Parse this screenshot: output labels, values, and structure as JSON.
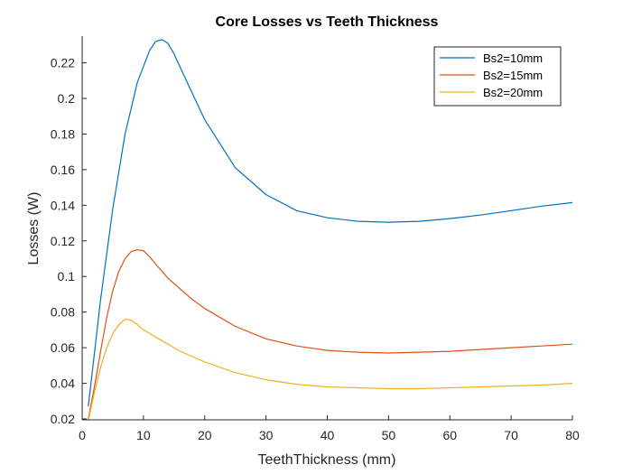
{
  "chart_data": {
    "type": "line",
    "title": "Core Losses vs Teeth Thickness",
    "xlabel": "TeethThickness (mm)",
    "ylabel": "Losses (W)",
    "xlim": [
      0,
      80
    ],
    "ylim": [
      0.0195,
      0.235
    ],
    "xticks": [
      0,
      10,
      20,
      30,
      40,
      50,
      60,
      70,
      80
    ],
    "yticks": [
      0.02,
      0.04,
      0.06,
      0.08,
      0.1,
      0.12,
      0.14,
      0.16,
      0.18,
      0.2,
      0.22
    ],
    "ytick_labels": [
      "0.02",
      "0.04",
      "0.06",
      "0.08",
      "0.1",
      "0.12",
      "0.14",
      "0.16",
      "0.18",
      "0.2",
      "0.22"
    ],
    "grid": false,
    "legend_position": "top-right",
    "series": [
      {
        "name": "Bs2=10mm",
        "color": "#0072BD",
        "x": [
          1,
          3,
          5,
          7,
          9,
          11,
          12,
          13,
          14,
          15,
          17,
          20,
          25,
          30,
          35,
          40,
          45,
          50,
          55,
          60,
          65,
          70,
          75,
          80
        ],
        "y": [
          0.027,
          0.087,
          0.138,
          0.18,
          0.209,
          0.227,
          0.232,
          0.233,
          0.231,
          0.225,
          0.21,
          0.188,
          0.161,
          0.146,
          0.137,
          0.133,
          0.131,
          0.1305,
          0.131,
          0.1325,
          0.1345,
          0.137,
          0.1395,
          0.1415
        ]
      },
      {
        "name": "Bs2=15mm",
        "color": "#D95319",
        "x": [
          1,
          2,
          3,
          4,
          5,
          6,
          7,
          8,
          9,
          10,
          11,
          12,
          14,
          16,
          18,
          20,
          25,
          30,
          35,
          40,
          45,
          50,
          55,
          60,
          65,
          70,
          75,
          80
        ],
        "y": [
          0.02,
          0.038,
          0.058,
          0.077,
          0.092,
          0.103,
          0.11,
          0.114,
          0.115,
          0.1145,
          0.111,
          0.107,
          0.099,
          0.093,
          0.087,
          0.082,
          0.072,
          0.065,
          0.061,
          0.0585,
          0.0575,
          0.057,
          0.0575,
          0.058,
          0.059,
          0.06,
          0.061,
          0.062
        ]
      },
      {
        "name": "Bs2=20mm",
        "color": "#EDB120",
        "x": [
          1,
          2,
          3,
          4,
          5,
          6,
          7,
          8,
          9,
          10,
          12,
          14,
          16,
          18,
          20,
          25,
          30,
          35,
          40,
          45,
          50,
          55,
          60,
          65,
          70,
          75,
          80
        ],
        "y": [
          0.019,
          0.035,
          0.049,
          0.06,
          0.068,
          0.073,
          0.076,
          0.0755,
          0.073,
          0.07,
          0.066,
          0.062,
          0.058,
          0.055,
          0.052,
          0.046,
          0.042,
          0.0395,
          0.038,
          0.0375,
          0.037,
          0.037,
          0.0375,
          0.038,
          0.0385,
          0.039,
          0.04
        ]
      }
    ]
  }
}
